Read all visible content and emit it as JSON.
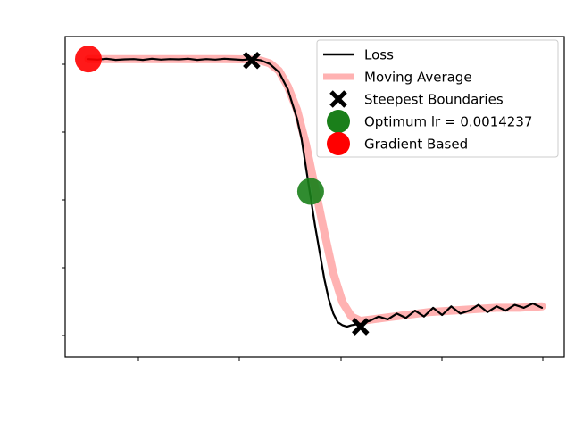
{
  "chart_data": {
    "type": "line",
    "title": "",
    "xlabel": "",
    "ylabel": "",
    "xlim": [
      0,
      1
    ],
    "ylim": [
      0,
      1
    ],
    "grid": false,
    "legend_position": "top-right",
    "series": [
      {
        "name": "Loss",
        "kind": "line",
        "color": "#000000",
        "x": [
          0.0,
          0.02,
          0.04,
          0.06,
          0.08,
          0.1,
          0.12,
          0.14,
          0.16,
          0.18,
          0.2,
          0.22,
          0.24,
          0.26,
          0.28,
          0.3,
          0.32,
          0.34,
          0.36,
          0.38,
          0.4,
          0.42,
          0.44,
          0.46,
          0.47,
          0.48,
          0.49,
          0.5,
          0.51,
          0.52,
          0.53,
          0.54,
          0.55,
          0.56,
          0.57,
          0.58,
          0.6,
          0.62,
          0.64,
          0.66,
          0.68,
          0.7,
          0.72,
          0.74,
          0.76,
          0.78,
          0.8,
          0.82,
          0.84,
          0.86,
          0.88,
          0.9,
          0.92,
          0.94,
          0.96,
          0.98,
          1.0
        ],
        "y": [
          0.975,
          0.973,
          0.976,
          0.972,
          0.974,
          0.975,
          0.972,
          0.976,
          0.973,
          0.975,
          0.974,
          0.976,
          0.972,
          0.975,
          0.973,
          0.976,
          0.974,
          0.972,
          0.975,
          0.971,
          0.958,
          0.93,
          0.87,
          0.77,
          0.7,
          0.6,
          0.5,
          0.4,
          0.31,
          0.22,
          0.15,
          0.1,
          0.07,
          0.06,
          0.055,
          0.06,
          0.065,
          0.075,
          0.09,
          0.08,
          0.1,
          0.085,
          0.11,
          0.09,
          0.12,
          0.095,
          0.125,
          0.1,
          0.11,
          0.13,
          0.105,
          0.125,
          0.11,
          0.13,
          0.12,
          0.135,
          0.12
        ]
      },
      {
        "name": "Moving Average",
        "kind": "line",
        "color": "#ffb2b2",
        "x": [
          0.0,
          0.05,
          0.1,
          0.15,
          0.2,
          0.25,
          0.3,
          0.35,
          0.38,
          0.4,
          0.42,
          0.44,
          0.46,
          0.48,
          0.5,
          0.52,
          0.54,
          0.56,
          0.58,
          0.6,
          0.65,
          0.7,
          0.75,
          0.8,
          0.85,
          0.9,
          0.95,
          1.0
        ],
        "y": [
          0.975,
          0.975,
          0.975,
          0.975,
          0.975,
          0.975,
          0.975,
          0.974,
          0.97,
          0.96,
          0.935,
          0.88,
          0.8,
          0.68,
          0.53,
          0.38,
          0.24,
          0.14,
          0.09,
          0.075,
          0.085,
          0.095,
          0.105,
          0.11,
          0.115,
          0.12,
          0.12,
          0.125
        ]
      },
      {
        "name": "Steepest Boundaries",
        "kind": "marker",
        "marker": "X",
        "color": "#000000",
        "x": [
          0.36,
          0.6
        ],
        "y": [
          0.97,
          0.055
        ]
      },
      {
        "name": "Optimum lr = 0.0014237",
        "kind": "marker",
        "marker": "circle",
        "color": "#1a7f1a",
        "x": [
          0.49
        ],
        "y": [
          0.52
        ]
      },
      {
        "name": "Gradient Based",
        "kind": "marker",
        "marker": "circle",
        "color": "#ff0000",
        "x": [
          0.0
        ],
        "y": [
          0.975
        ]
      }
    ]
  }
}
